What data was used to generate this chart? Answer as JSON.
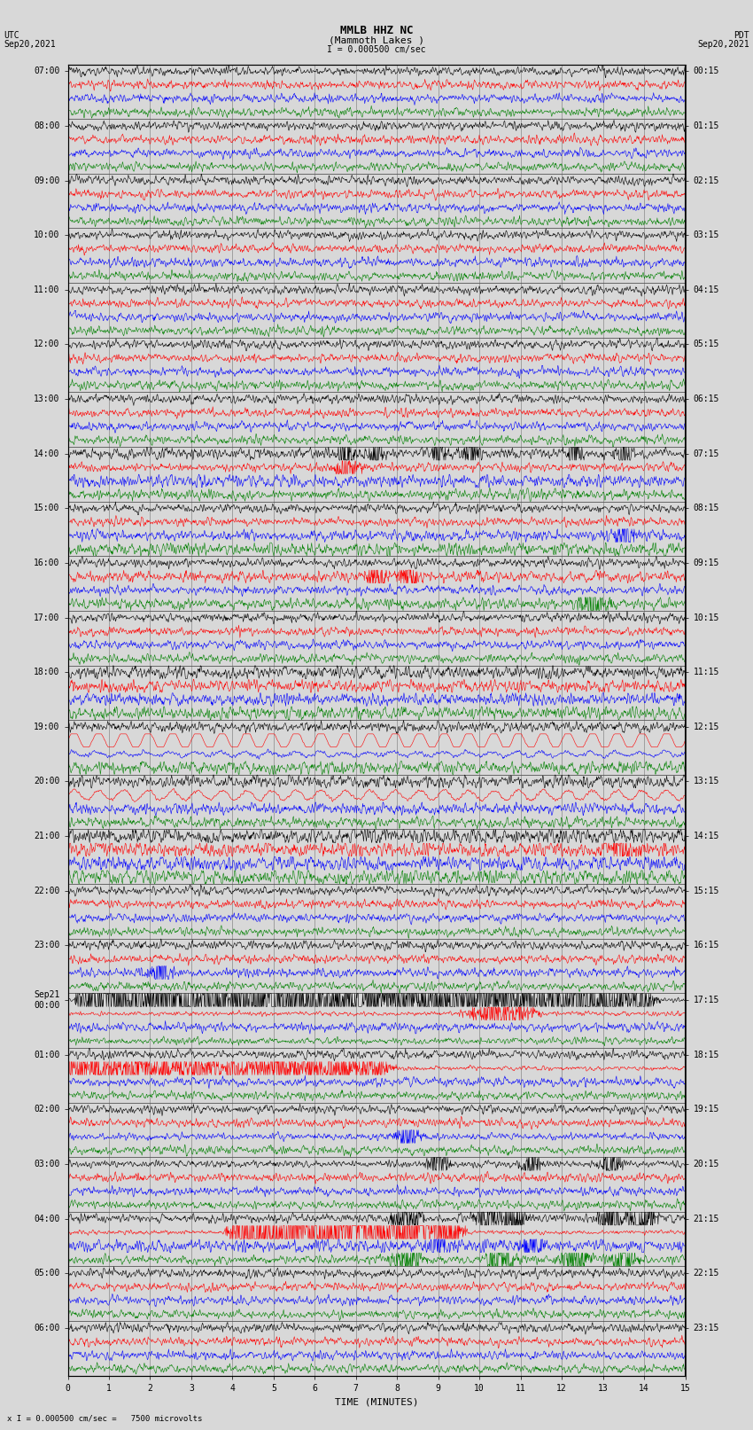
{
  "title_line1": "MMLB HHZ NC",
  "title_line2": "(Mammoth Lakes )",
  "title_scale": "I = 0.000500 cm/sec",
  "left_label1": "UTC",
  "left_label2": "Sep20,2021",
  "right_label1": "PDT",
  "right_label2": "Sep20,2021",
  "x_label": "TIME (MINUTES)",
  "footer": "x I = 0.000500 cm/sec =   7500 microvolts",
  "bg_color": "#d8d8d8",
  "trace_colors": [
    "black",
    "red",
    "blue",
    "green"
  ],
  "utc_hour_labels": [
    "07:00",
    "08:00",
    "09:00",
    "10:00",
    "11:00",
    "12:00",
    "13:00",
    "14:00",
    "15:00",
    "16:00",
    "17:00",
    "18:00",
    "19:00",
    "20:00",
    "21:00",
    "22:00",
    "23:00",
    "Sep21\n00:00",
    "01:00",
    "02:00",
    "03:00",
    "04:00",
    "05:00",
    "06:00"
  ],
  "pdt_hour_labels": [
    "00:15",
    "01:15",
    "02:15",
    "03:15",
    "04:15",
    "05:15",
    "06:15",
    "07:15",
    "08:15",
    "09:15",
    "10:15",
    "11:15",
    "12:15",
    "13:15",
    "14:15",
    "15:15",
    "16:15",
    "17:15",
    "18:15",
    "19:15",
    "20:15",
    "21:15",
    "22:15",
    "23:15"
  ],
  "n_hours": 24,
  "traces_per_hour": 4,
  "minutes": 15,
  "samples": 1500,
  "noise_amp": 0.25,
  "label_fontsize": 7,
  "title_fontsize": 8
}
